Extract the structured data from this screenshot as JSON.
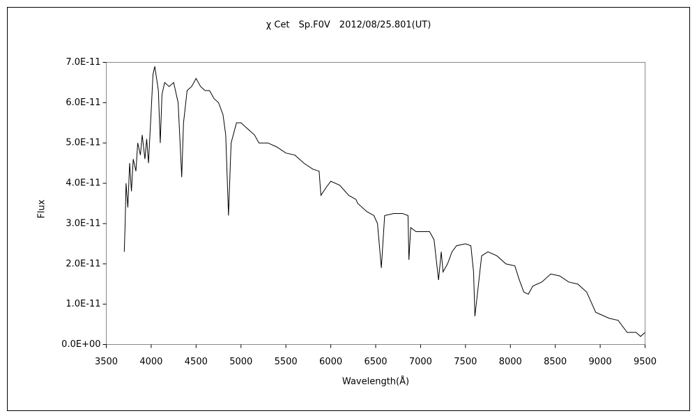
{
  "chart_data": {
    "type": "line",
    "title": "χ Cet　Sp.F0V　2012/08/25.801(UT)",
    "x_label": "Wavelength(Å)",
    "y_label": "Flux",
    "xlim": [
      3500,
      9500
    ],
    "xticks": [
      3500,
      4000,
      4500,
      5000,
      5500,
      6000,
      6500,
      7000,
      7500,
      8000,
      8500,
      9000,
      9500
    ],
    "ylim": [
      0,
      7e-11
    ],
    "yticks": [
      {
        "value": 0,
        "label": "0.0E+00"
      },
      {
        "value": 1e-11,
        "label": "1.0E-11"
      },
      {
        "value": 2e-11,
        "label": "2.0E-11"
      },
      {
        "value": 3e-11,
        "label": "3.0E-11"
      },
      {
        "value": 4e-11,
        "label": "4.0E-11"
      },
      {
        "value": 5e-11,
        "label": "5.0E-11"
      },
      {
        "value": 6e-11,
        "label": "6.0E-11"
      },
      {
        "value": 7e-11,
        "label": "7.0E-11"
      }
    ],
    "series": [
      {
        "color": "#000000",
        "x": [
          3700,
          3710,
          3720,
          3740,
          3760,
          3780,
          3800,
          3830,
          3850,
          3880,
          3900,
          3930,
          3950,
          3970,
          4000,
          4020,
          4040,
          4060,
          4080,
          4101,
          4120,
          4150,
          4200,
          4250,
          4300,
          4340,
          4360,
          4400,
          4450,
          4500,
          4550,
          4600,
          4650,
          4700,
          4750,
          4800,
          4830,
          4861,
          4890,
          4950,
          5000,
          5050,
          5100,
          5150,
          5200,
          5250,
          5300,
          5400,
          5500,
          5600,
          5700,
          5800,
          5870,
          5890,
          5950,
          6000,
          6100,
          6200,
          6280,
          6300,
          6400,
          6480,
          6520,
          6563,
          6600,
          6700,
          6800,
          6860,
          6870,
          6890,
          6950,
          7000,
          7100,
          7150,
          7200,
          7230,
          7250,
          7300,
          7350,
          7400,
          7500,
          7560,
          7590,
          7605,
          7640,
          7680,
          7750,
          7850,
          7950,
          8050,
          8100,
          8150,
          8200,
          8250,
          8350,
          8450,
          8550,
          8650,
          8750,
          8850,
          8950,
          9000,
          9100,
          9200,
          9300,
          9400,
          9450,
          9500
        ],
        "values": [
          2.3e-11,
          3e-11,
          4e-11,
          3.4e-11,
          4.5e-11,
          3.8e-11,
          4.6e-11,
          4.3e-11,
          5e-11,
          4.7e-11,
          5.2e-11,
          4.6e-11,
          5.1e-11,
          4.5e-11,
          5.8e-11,
          6.7e-11,
          6.9e-11,
          6.6e-11,
          6.3e-11,
          5e-11,
          6.2e-11,
          6.5e-11,
          6.4e-11,
          6.5e-11,
          6e-11,
          4.15e-11,
          5.5e-11,
          6.3e-11,
          6.4e-11,
          6.6e-11,
          6.4e-11,
          6.3e-11,
          6.3e-11,
          6.1e-11,
          6e-11,
          5.7e-11,
          5.2e-11,
          3.2e-11,
          5e-11,
          5.5e-11,
          5.5e-11,
          5.4e-11,
          5.3e-11,
          5.2e-11,
          5e-11,
          5e-11,
          5e-11,
          4.9e-11,
          4.75e-11,
          4.7e-11,
          4.5e-11,
          4.35e-11,
          4.3e-11,
          3.7e-11,
          3.9e-11,
          4.05e-11,
          3.95e-11,
          3.7e-11,
          3.6e-11,
          3.5e-11,
          3.3e-11,
          3.2e-11,
          3e-11,
          1.9e-11,
          3.2e-11,
          3.25e-11,
          3.25e-11,
          3.2e-11,
          2.1e-11,
          2.9e-11,
          2.8e-11,
          2.8e-11,
          2.8e-11,
          2.6e-11,
          1.6e-11,
          2.3e-11,
          1.8e-11,
          2e-11,
          2.3e-11,
          2.45e-11,
          2.5e-11,
          2.45e-11,
          1.8e-11,
          7e-12,
          1.4e-11,
          2.2e-11,
          2.3e-11,
          2.2e-11,
          2e-11,
          1.95e-11,
          1.6e-11,
          1.3e-11,
          1.25e-11,
          1.45e-11,
          1.55e-11,
          1.75e-11,
          1.7e-11,
          1.55e-11,
          1.5e-11,
          1.3e-11,
          8e-12,
          7.5e-12,
          6.5e-12,
          6e-12,
          3e-12,
          3e-12,
          2e-12,
          3e-12
        ]
      }
    ]
  }
}
